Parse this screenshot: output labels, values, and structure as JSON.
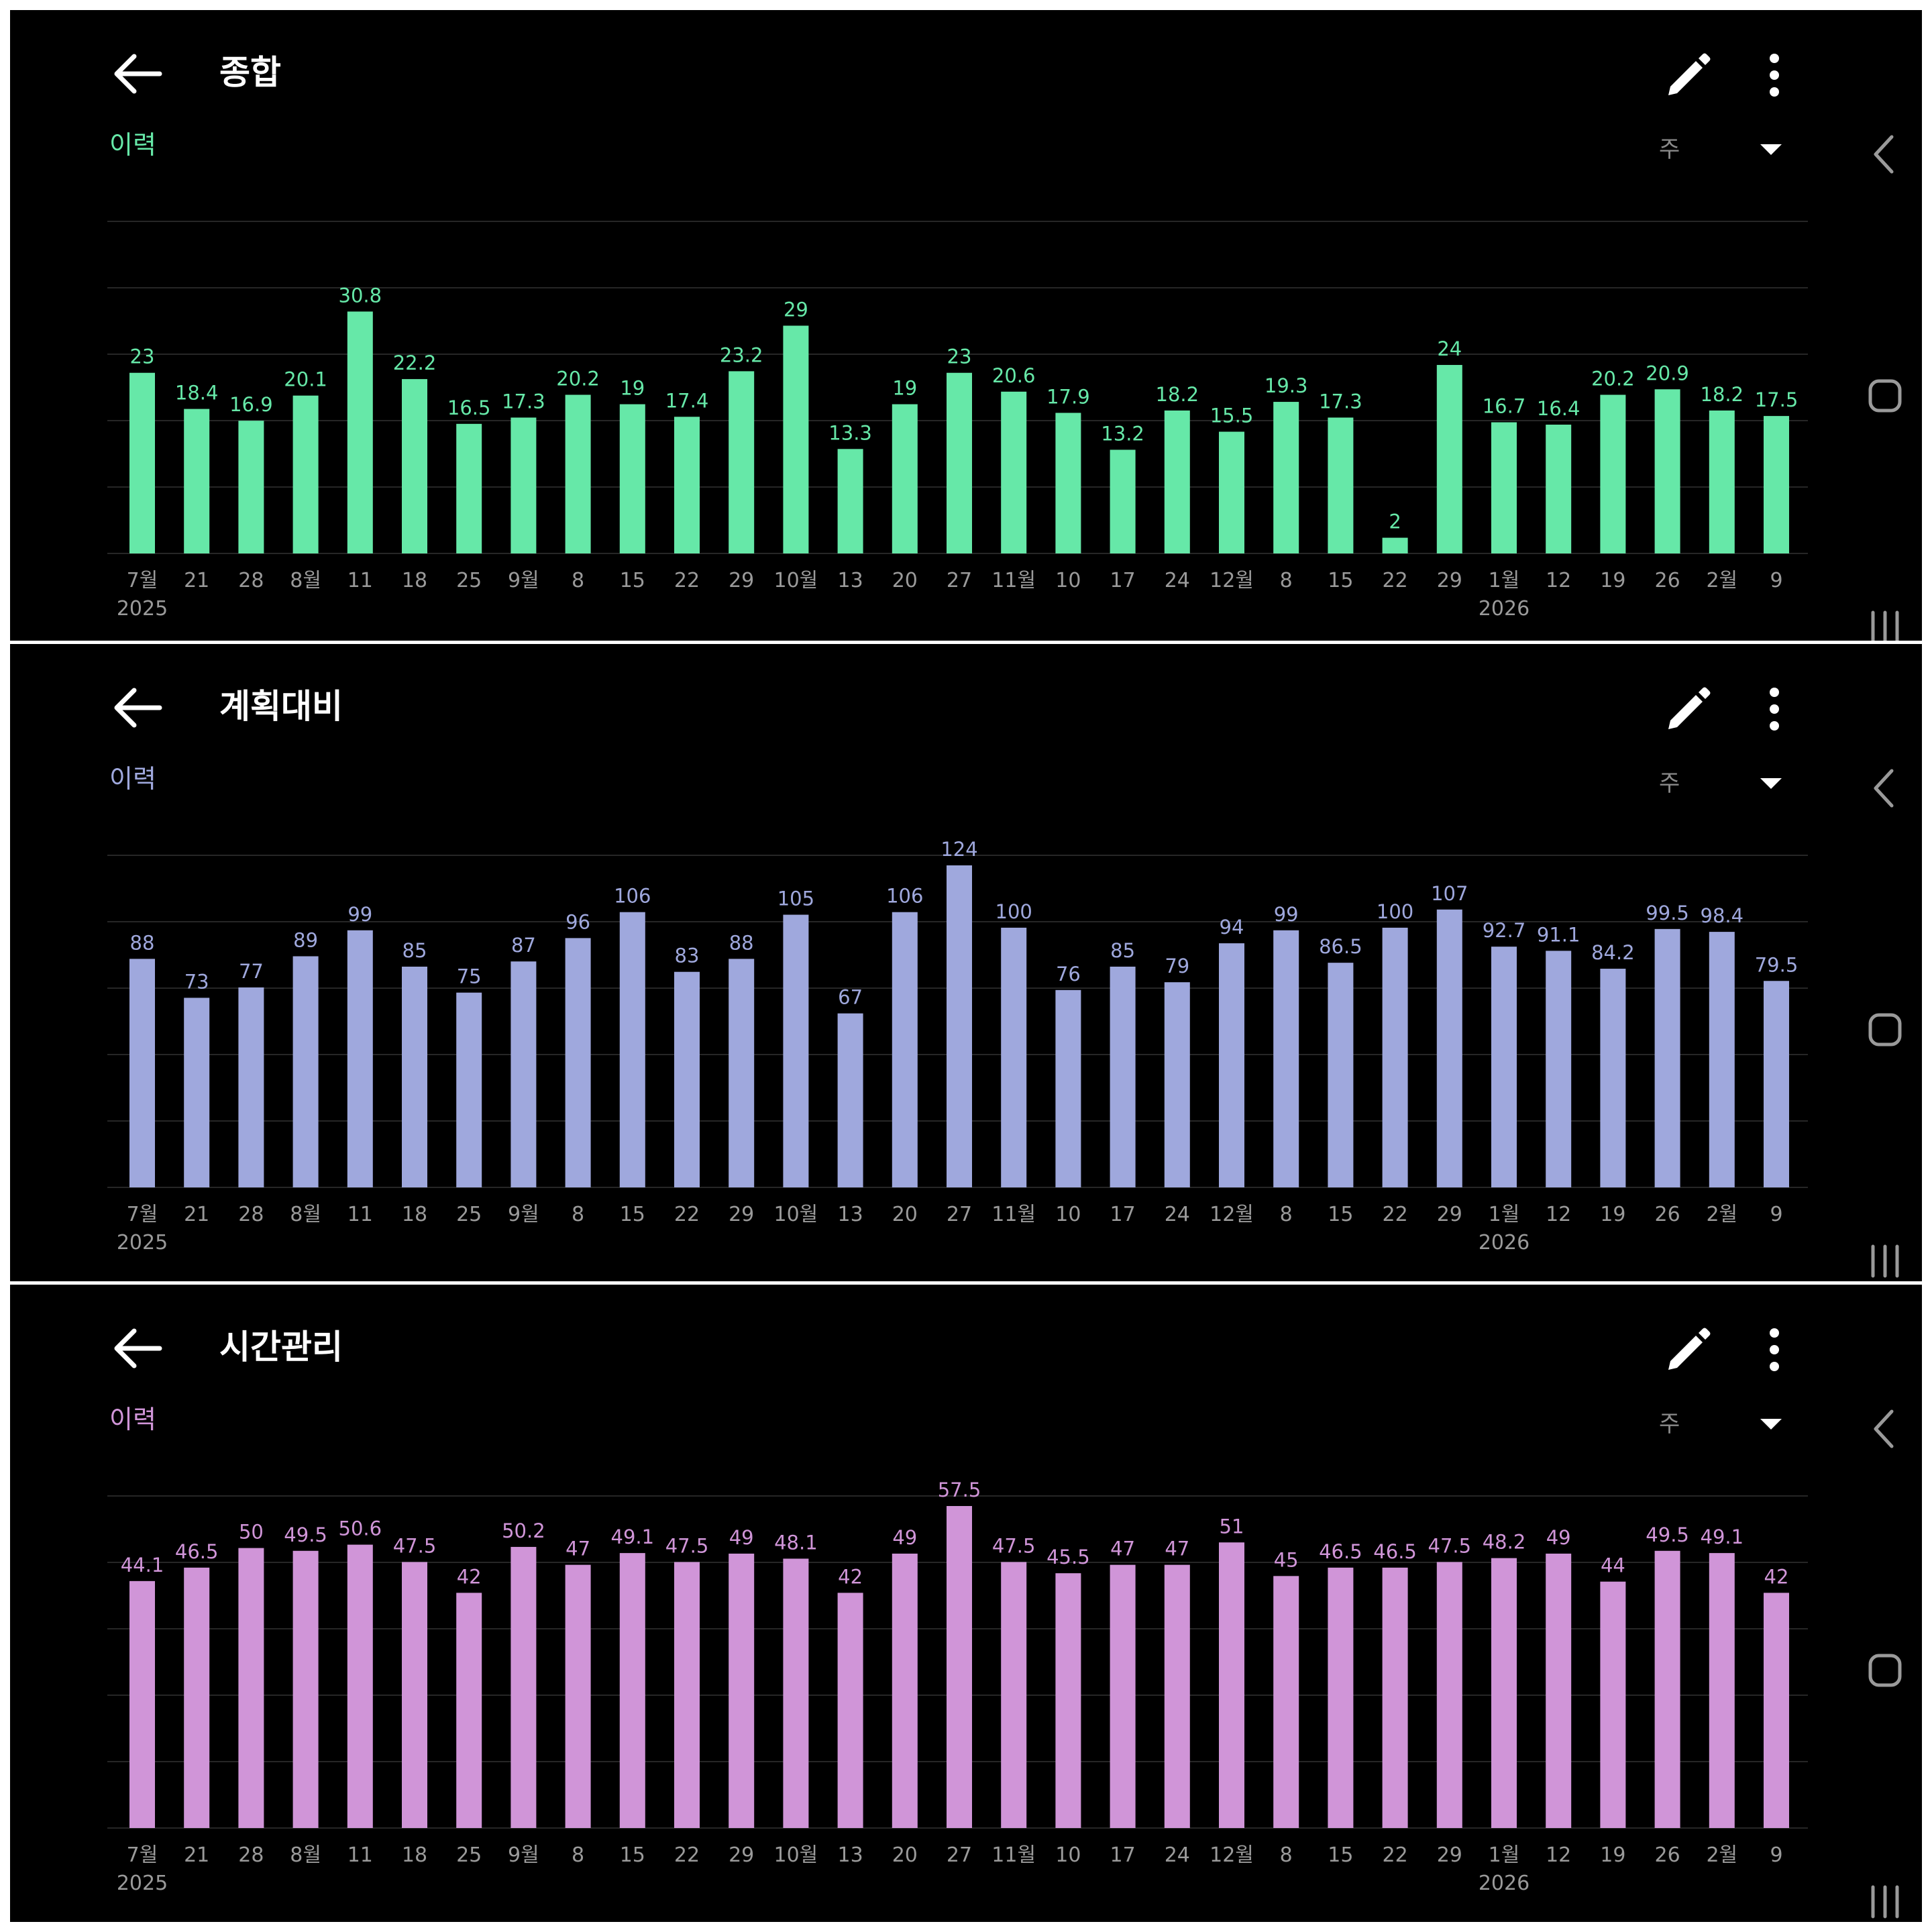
{
  "nav_color": "#9a9a9a",
  "panels": [
    {
      "title": "종합",
      "section_label": "이력",
      "period": "주",
      "accent": "#66e8a8",
      "chart_data": {
        "type": "bar",
        "categories": [
          "7월",
          "21",
          "28",
          "8월",
          "11",
          "18",
          "25",
          "9월",
          "8",
          "15",
          "22",
          "29",
          "10월",
          "13",
          "20",
          "27",
          "11월",
          "10",
          "17",
          "24",
          "12월",
          "8",
          "15",
          "22",
          "29",
          "1월",
          "12",
          "19",
          "26",
          "2월",
          "9"
        ],
        "year_labels": [
          {
            "index": 0,
            "label": "2025"
          },
          {
            "index": 25,
            "label": "2026"
          }
        ],
        "values": [
          23,
          18.4,
          16.9,
          20.1,
          30.8,
          22.2,
          16.5,
          17.3,
          20.2,
          19,
          17.4,
          23.2,
          29,
          13.3,
          19,
          23,
          20.6,
          17.9,
          13.2,
          18.2,
          15.5,
          19.3,
          17.3,
          2,
          24,
          16.7,
          16.4,
          20.2,
          20.9,
          18.2,
          17.5
        ],
        "ylim": [
          0,
          41
        ],
        "grid": true,
        "data_labels": true
      }
    },
    {
      "title": "계획대비",
      "section_label": "이력",
      "period": "주",
      "accent": "#9fa8dd",
      "chart_data": {
        "type": "bar",
        "categories": [
          "7월",
          "21",
          "28",
          "8월",
          "11",
          "18",
          "25",
          "9월",
          "8",
          "15",
          "22",
          "29",
          "10월",
          "13",
          "20",
          "27",
          "11월",
          "10",
          "17",
          "24",
          "12월",
          "8",
          "15",
          "22",
          "29",
          "1월",
          "12",
          "19",
          "26",
          "2월",
          "9"
        ],
        "year_labels": [
          {
            "index": 0,
            "label": "2025"
          },
          {
            "index": 25,
            "label": "2026"
          }
        ],
        "values": [
          88,
          73,
          77,
          89,
          99,
          85,
          75,
          87,
          96,
          106,
          83,
          88,
          105,
          67,
          106,
          124,
          100,
          76,
          85,
          79,
          94,
          99,
          86.5,
          100,
          107,
          92.7,
          91.1,
          84.2,
          99.5,
          98.4,
          79.5
        ],
        "ylim": [
          0,
          124
        ],
        "grid": true,
        "data_labels": true
      }
    },
    {
      "title": "시간관리",
      "section_label": "이력",
      "period": "주",
      "accent": "#d095d8",
      "chart_data": {
        "type": "bar",
        "categories": [
          "7월",
          "21",
          "28",
          "8월",
          "11",
          "18",
          "25",
          "9월",
          "8",
          "15",
          "22",
          "29",
          "10월",
          "13",
          "20",
          "27",
          "11월",
          "10",
          "17",
          "24",
          "12월",
          "8",
          "15",
          "22",
          "29",
          "1월",
          "12",
          "19",
          "26",
          "2월",
          "9"
        ],
        "year_labels": [
          {
            "index": 0,
            "label": "2025"
          },
          {
            "index": 25,
            "label": "2026"
          }
        ],
        "values": [
          44.1,
          46.5,
          50,
          49.5,
          50.6,
          47.5,
          42,
          50.2,
          47,
          49.1,
          47.5,
          49,
          48.1,
          42,
          49,
          57.5,
          47.5,
          45.5,
          47,
          47,
          51,
          45,
          46.5,
          46.5,
          47.5,
          48.2,
          49,
          44,
          49.5,
          49.1,
          42
        ],
        "ylim": [
          0,
          57.5
        ],
        "grid": true,
        "data_labels": true
      }
    }
  ]
}
